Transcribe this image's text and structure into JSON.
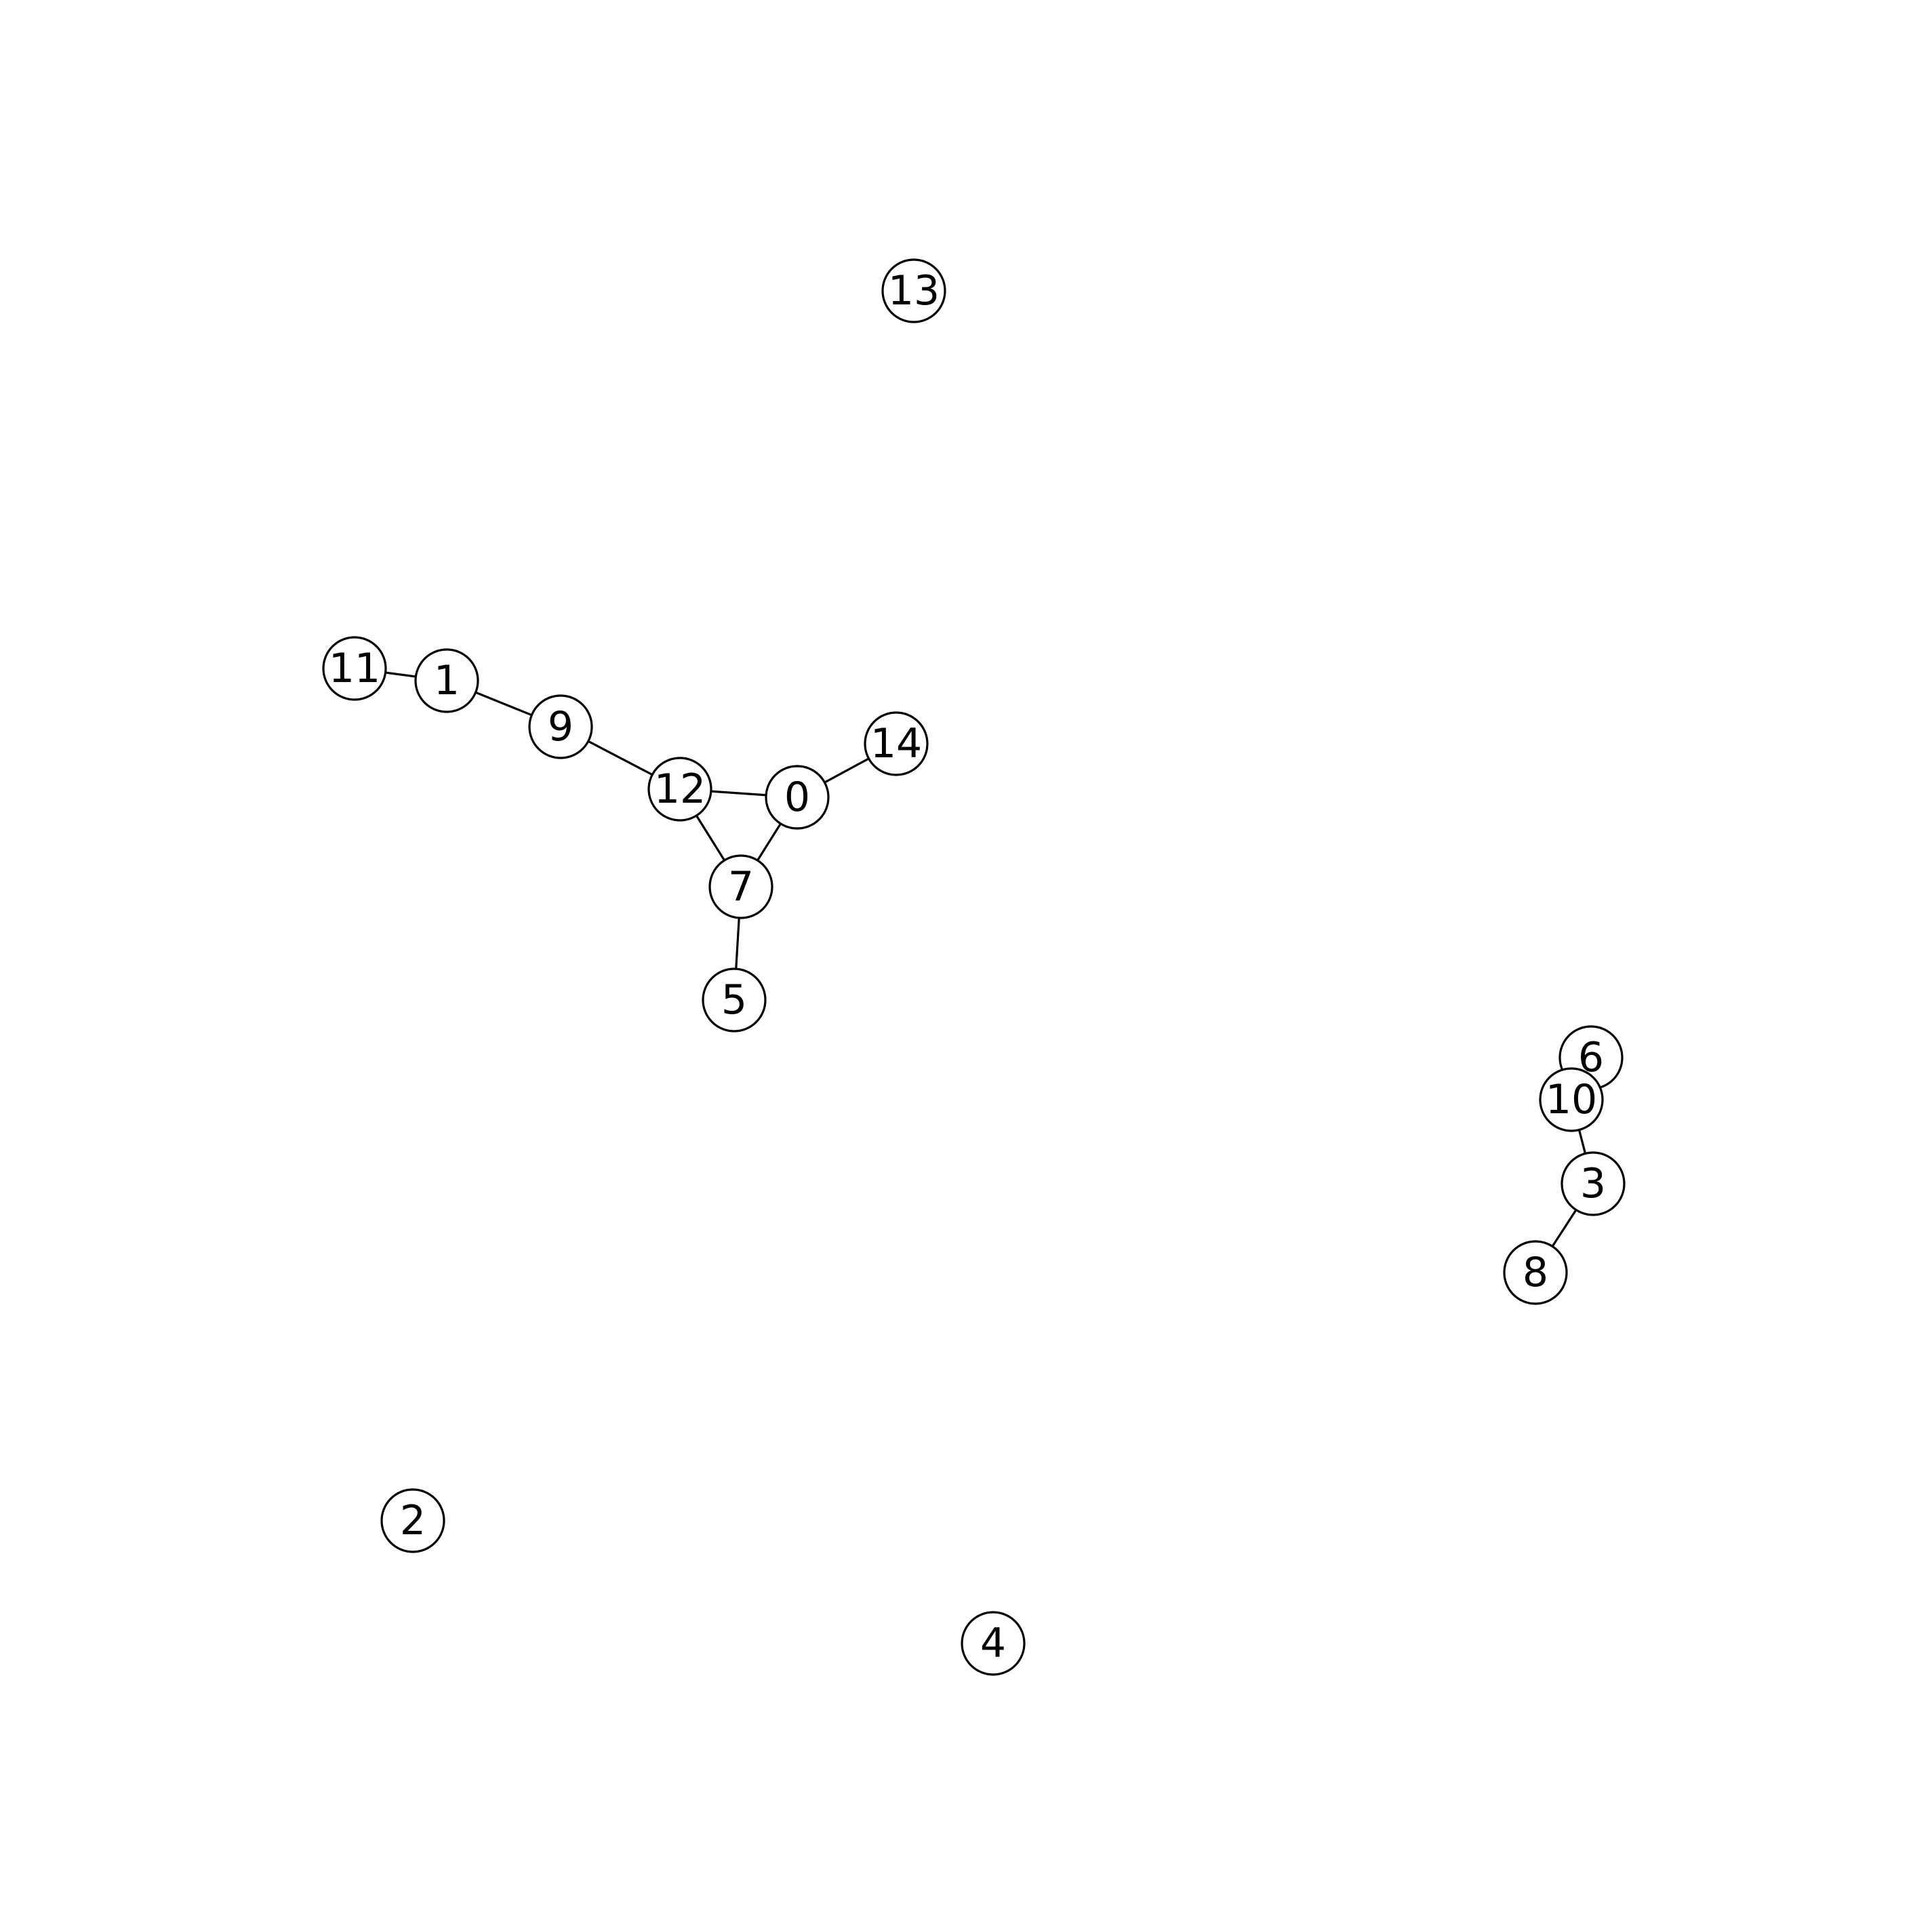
{
  "graph": {
    "nodes": [
      {
        "id": "0",
        "label": "0"
      },
      {
        "id": "1",
        "label": "1"
      },
      {
        "id": "2",
        "label": "2"
      },
      {
        "id": "3",
        "label": "3"
      },
      {
        "id": "4",
        "label": "4"
      },
      {
        "id": "5",
        "label": "5"
      },
      {
        "id": "6",
        "label": "6"
      },
      {
        "id": "7",
        "label": "7"
      },
      {
        "id": "8",
        "label": "8"
      },
      {
        "id": "9",
        "label": "9"
      },
      {
        "id": "10",
        "label": "10"
      },
      {
        "id": "11",
        "label": "11"
      },
      {
        "id": "12",
        "label": "12"
      },
      {
        "id": "13",
        "label": "13"
      },
      {
        "id": "14",
        "label": "14"
      }
    ],
    "edges": [
      {
        "source": "11",
        "target": "1"
      },
      {
        "source": "1",
        "target": "9"
      },
      {
        "source": "9",
        "target": "12"
      },
      {
        "source": "12",
        "target": "0"
      },
      {
        "source": "12",
        "target": "7"
      },
      {
        "source": "0",
        "target": "7"
      },
      {
        "source": "0",
        "target": "14"
      },
      {
        "source": "7",
        "target": "5"
      },
      {
        "source": "6",
        "target": "10"
      },
      {
        "source": "10",
        "target": "3"
      },
      {
        "source": "3",
        "target": "8"
      }
    ]
  }
}
